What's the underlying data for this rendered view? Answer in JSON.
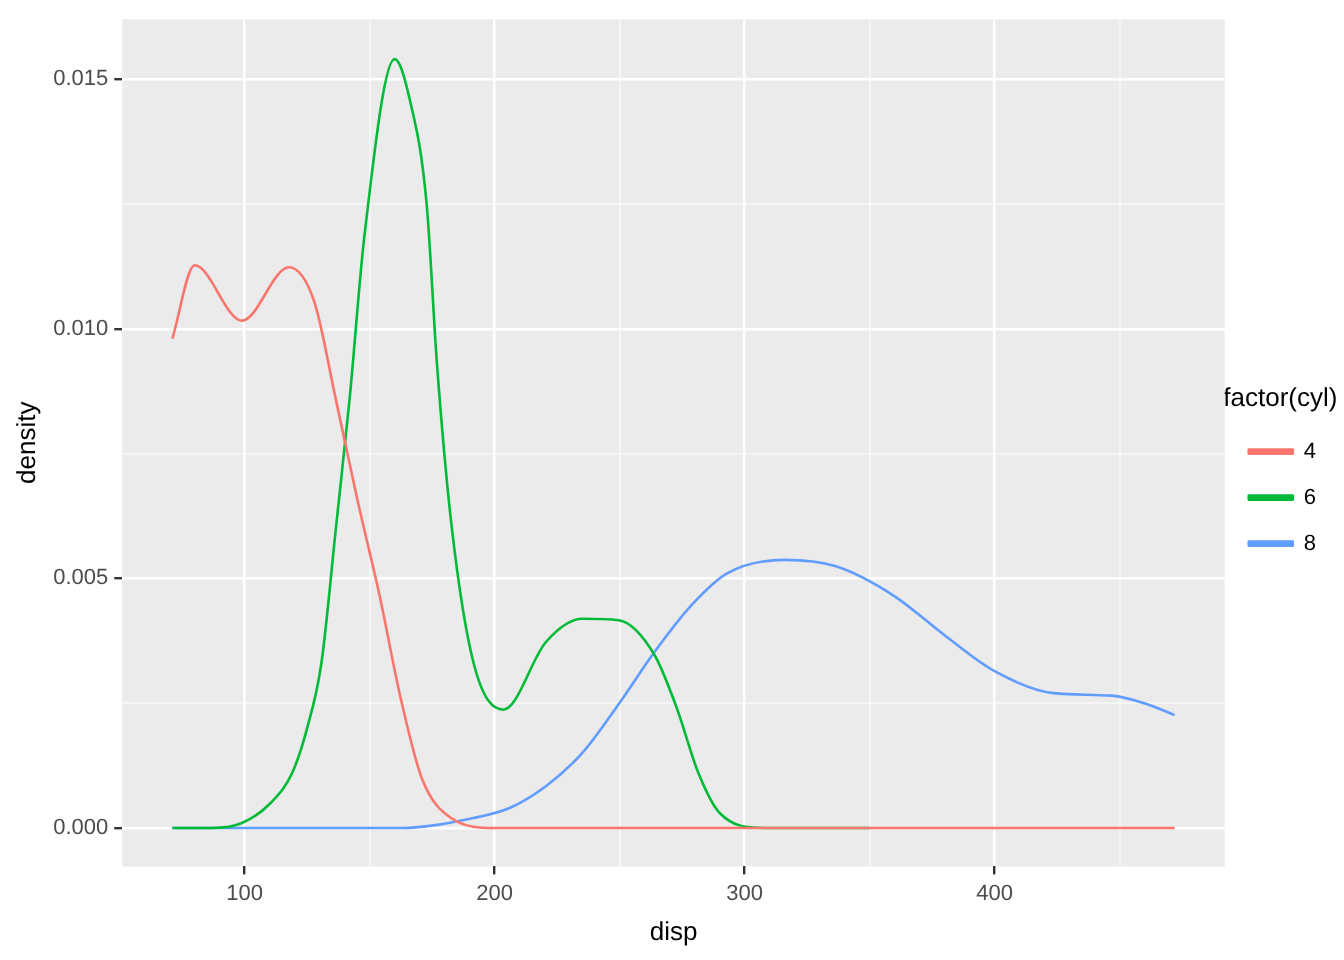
{
  "chart_data": {
    "type": "line",
    "xlabel": "disp",
    "ylabel": "density",
    "legend_title": "factor(cyl)",
    "xlim": [
      51.05,
      492.05
    ],
    "ylim": [
      -0.00077,
      0.0162
    ],
    "xticks": [
      100,
      {
        "value": 150,
        "label": null
      },
      200,
      {
        "value": 250,
        "label": null
      },
      300,
      {
        "value": 350,
        "label": null
      },
      400,
      {
        "value": 450,
        "label": null
      }
    ],
    "yticks": [
      {
        "value": 0,
        "label": "0.000"
      },
      {
        "value": 0.0025,
        "label": null
      },
      {
        "value": 0.005,
        "label": "0.005"
      },
      {
        "value": 0.0075,
        "label": null
      },
      {
        "value": 0.01,
        "label": "0.010"
      },
      {
        "value": 0.0125,
        "label": null
      },
      {
        "value": 0.015,
        "label": "0.015"
      }
    ],
    "grid": true,
    "legend": "right",
    "marker": "none",
    "line_style": "solid",
    "series": [
      {
        "name": "4",
        "color": "#f8766d",
        "x": [
          71.1,
          80,
          98.9,
          117.7,
          127.8,
          136.5,
          145,
          154,
          162.6,
          171,
          182.6,
          200,
          300,
          400,
          472
        ],
        "values": [
          0.0098,
          0.01127,
          0.01016,
          0.01123,
          0.01055,
          0.00858,
          0.0066,
          0.00465,
          0.00256,
          0.00098,
          0.0002,
          0,
          0,
          0,
          0
        ]
      },
      {
        "name": "6",
        "color": "#00ba38",
        "x": [
          71.1,
          87,
          98.9,
          110.4,
          119,
          125,
          130.7,
          136.5,
          142,
          148,
          160,
          166,
          172.8,
          177,
          182.9,
          191.6,
          203.5,
          220.6,
          235,
          249.6,
          264,
          272.8,
          281.5,
          290,
          307.5,
          350
        ],
        "values": [
          0,
          0,
          0.0001,
          0.0005,
          0.0011,
          0.002,
          0.0033,
          0.006,
          0.0086,
          0.0119,
          0.0154,
          0.0146,
          0.0125,
          0.00925,
          0.006,
          0.0033,
          0.00237,
          0.00373,
          0.00419,
          0.00416,
          0.00346,
          0.00241,
          0.0011,
          0.0003,
          0,
          0
        ]
      },
      {
        "name": "8",
        "color": "#619cff",
        "x": [
          71.1,
          120,
          162.6,
          191.6,
          206,
          220.6,
          235,
          249.6,
          264,
          278.5,
          293,
          316,
          336.5,
          359.7,
          380,
          400,
          423.5,
          446.7,
          461,
          472
        ],
        "values": [
          0,
          0,
          0,
          0.0002,
          0.0004,
          0.00084,
          0.0015,
          0.00248,
          0.00353,
          0.00445,
          0.0051,
          0.00537,
          0.00524,
          0.00465,
          0.00386,
          0.00314,
          0.0027,
          0.00265,
          0.00248,
          0.00226
        ]
      }
    ]
  }
}
